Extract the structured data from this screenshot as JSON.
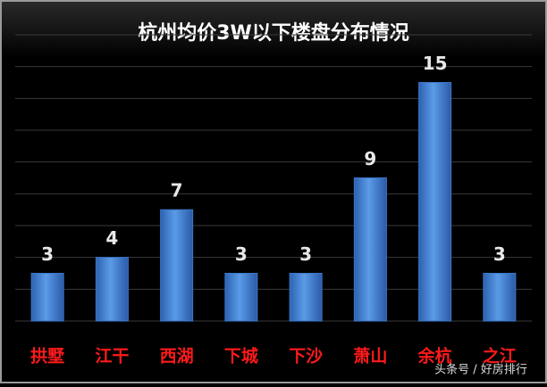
{
  "chart_data": {
    "type": "bar",
    "title": "杭州均价3W以下楼盘分布情况",
    "categories": [
      "拱墅",
      "江干",
      "西湖",
      "下城",
      "下沙",
      "萧山",
      "余杭",
      "之江"
    ],
    "values": [
      3,
      4,
      7,
      3,
      3,
      9,
      15,
      3
    ],
    "color": "#3b78c8",
    "label_color": "#e8e8e8",
    "category_color": "#ff1a1a",
    "ylim": [
      0,
      18
    ],
    "yticks": [
      0,
      2,
      4,
      6,
      8,
      10,
      12,
      14,
      16,
      18
    ],
    "grid": true
  },
  "watermark": "头条号 / 好房排行"
}
